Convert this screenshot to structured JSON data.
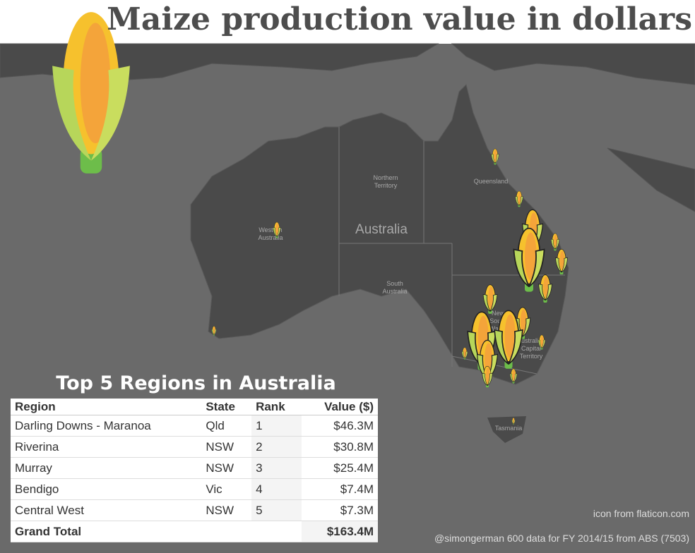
{
  "title": "Maize production value in dollars",
  "map_labels": {
    "northern_territory": [
      "Northern",
      "Territory"
    ],
    "queensland": [
      "Queensland"
    ],
    "western_australia": [
      "Western",
      "Australia"
    ],
    "country": [
      "Australia"
    ],
    "south_australia": [
      "South",
      "Australia"
    ],
    "new_south_wales": [
      "New",
      "South",
      "Wales"
    ],
    "act": [
      "Australian",
      "Capital",
      "Territory"
    ],
    "tasmania": [
      "Tasmania"
    ]
  },
  "table": {
    "title": "Top 5 Regions in Australia",
    "columns": [
      "Region",
      "State",
      "Rank",
      "Value ($)"
    ],
    "rows": [
      [
        "Darling Downs - Maranoa",
        "Qld",
        "1",
        "$46.3M"
      ],
      [
        "Riverina",
        "NSW",
        "2",
        "$30.8M"
      ],
      [
        "Murray",
        "NSW",
        "3",
        "$25.4M"
      ],
      [
        "Bendigo",
        "Vic",
        "4",
        "$7.4M"
      ],
      [
        "Central West",
        "NSW",
        "5",
        "$7.3M"
      ]
    ],
    "total": [
      "Grand Total",
      "$163.4M"
    ]
  },
  "credits": [
    "icon from flaticon.com",
    "@simongerman 600 data for FY 2014/15 from ABS (7503)"
  ]
}
